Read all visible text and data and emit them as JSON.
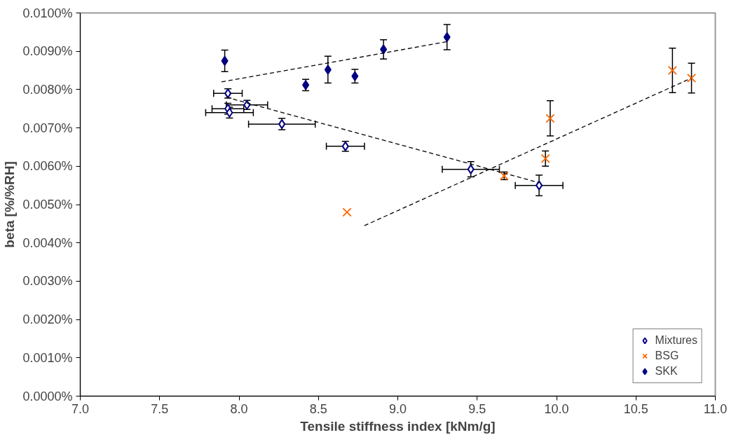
{
  "chart_data": {
    "type": "scatter",
    "xlabel": "Tensile stiffness index [kNm/g]",
    "ylabel": "beta [%/%RH]",
    "xlim": [
      7.0,
      11.0
    ],
    "ylim": [
      0.0,
      0.01
    ],
    "xticks": [
      {
        "value": 7.0,
        "label": "7.0"
      },
      {
        "value": 7.5,
        "label": "7.5"
      },
      {
        "value": 8.0,
        "label": "8.0"
      },
      {
        "value": 8.5,
        "label": "8.5"
      },
      {
        "value": 9.0,
        "label": "9.0"
      },
      {
        "value": 9.5,
        "label": "9.5"
      },
      {
        "value": 10.0,
        "label": "10.0"
      },
      {
        "value": 10.5,
        "label": "10.5"
      },
      {
        "value": 11.0,
        "label": "11.0"
      }
    ],
    "yticks": [
      {
        "value": 0.0,
        "label": "0.0000%"
      },
      {
        "value": 0.001,
        "label": "0.0010%"
      },
      {
        "value": 0.002,
        "label": "0.0020%"
      },
      {
        "value": 0.003,
        "label": "0.0030%"
      },
      {
        "value": 0.004,
        "label": "0.0040%"
      },
      {
        "value": 0.005,
        "label": "0.0050%"
      },
      {
        "value": 0.006,
        "label": "0.0060%"
      },
      {
        "value": 0.007,
        "label": "0.0070%"
      },
      {
        "value": 0.008,
        "label": "0.0080%"
      },
      {
        "value": 0.009,
        "label": "0.0090%"
      },
      {
        "value": 0.01,
        "label": "0.0100%"
      }
    ],
    "grid": false,
    "legend": "bottom right",
    "series": [
      {
        "name": "Mixtures",
        "color": "#000080",
        "marker": "diamond",
        "x": [
          7.93,
          8.05,
          7.93,
          7.94,
          8.27,
          8.67,
          9.46,
          9.89
        ],
        "values": [
          0.0079,
          0.0076,
          0.0075,
          0.0074,
          0.0071,
          0.00652,
          0.00592,
          0.0055
        ],
        "errors": [
          0.00012,
          0.00012,
          0.00014,
          0.00014,
          0.00015,
          0.00013,
          0.0002,
          0.00027
        ],
        "xerrors": [
          0.09,
          0.13,
          0.1,
          0.15,
          0.21,
          0.12,
          0.18,
          0.15
        ]
      },
      {
        "name": "BSG",
        "color": "#ff6600",
        "marker": "cross",
        "x": [
          8.68,
          9.67,
          9.93,
          9.96,
          10.73,
          10.85
        ],
        "values": [
          0.0048,
          0.00575,
          0.0062,
          0.00725,
          0.0085,
          0.0083
        ],
        "errors": [
          null,
          0.0001,
          0.0002,
          0.00046,
          0.00058,
          0.00039
        ]
      },
      {
        "name": "SKK",
        "color": "#000080",
        "marker": "diamond",
        "x": [
          7.91,
          8.42,
          8.56,
          8.73,
          8.91,
          9.31
        ],
        "values": [
          0.00875,
          0.00812,
          0.00852,
          0.00835,
          0.00905,
          0.00937
        ],
        "errors": [
          0.00028,
          0.00015,
          0.00035,
          0.00018,
          0.00025,
          0.00033
        ]
      },
      {
        "type": "line",
        "color": "#000000",
        "line_style": "dashed",
        "x": [
          7.92,
          9.89
        ],
        "values": [
          0.0078,
          0.00557
        ]
      },
      {
        "type": "line",
        "color": "#000000",
        "line_style": "dashed",
        "x": [
          8.79,
          10.85
        ],
        "values": [
          0.00445,
          0.0083
        ]
      },
      {
        "type": "line",
        "color": "#000000",
        "line_style": "dashed",
        "x": [
          7.89,
          9.31
        ],
        "values": [
          0.0082,
          0.00925
        ]
      }
    ]
  }
}
